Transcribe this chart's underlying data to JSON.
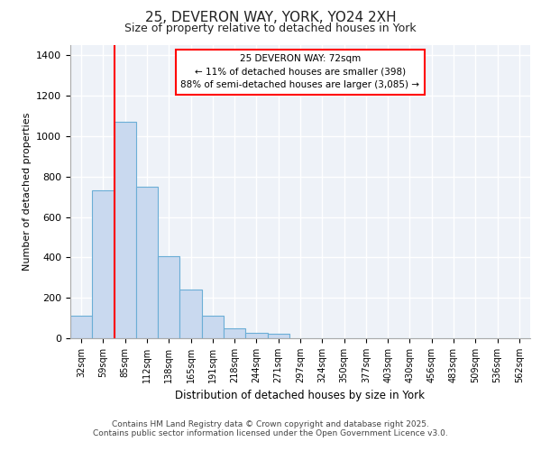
{
  "title1": "25, DEVERON WAY, YORK, YO24 2XH",
  "title2": "Size of property relative to detached houses in York",
  "xlabel": "Distribution of detached houses by size in York",
  "ylabel": "Number of detached properties",
  "categories": [
    "32sqm",
    "59sqm",
    "85sqm",
    "112sqm",
    "138sqm",
    "165sqm",
    "191sqm",
    "218sqm",
    "244sqm",
    "271sqm",
    "297sqm",
    "324sqm",
    "350sqm",
    "377sqm",
    "403sqm",
    "430sqm",
    "456sqm",
    "483sqm",
    "509sqm",
    "536sqm",
    "562sqm"
  ],
  "values": [
    110,
    730,
    1070,
    750,
    405,
    242,
    113,
    50,
    28,
    22,
    0,
    0,
    0,
    0,
    0,
    0,
    0,
    0,
    0,
    0,
    0
  ],
  "bar_color": "#c9d9ef",
  "bar_edge_color": "#6baed6",
  "red_line_x": 1.5,
  "annotation_title": "25 DEVERON WAY: 72sqm",
  "annotation_line1": "← 11% of detached houses are smaller (398)",
  "annotation_line2": "88% of semi-detached houses are larger (3,085) →",
  "ylim": [
    0,
    1450
  ],
  "yticks": [
    0,
    200,
    400,
    600,
    800,
    1000,
    1200,
    1400
  ],
  "fig_bg_color": "#ffffff",
  "plot_bg_color": "#eef2f8",
  "footer1": "Contains HM Land Registry data © Crown copyright and database right 2025.",
  "footer2": "Contains public sector information licensed under the Open Government Licence v3.0."
}
